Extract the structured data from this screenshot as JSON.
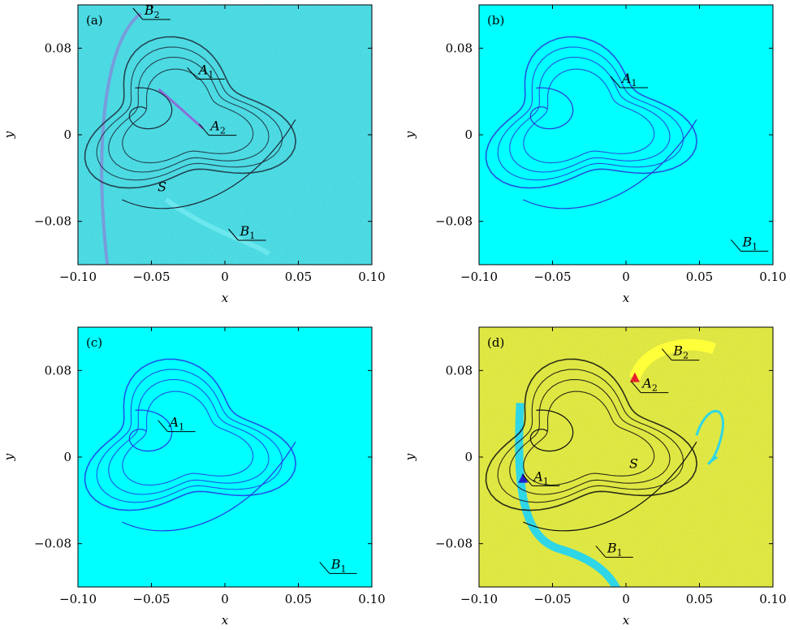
{
  "chart_data": [
    {
      "panel": "(a)",
      "type": "scatter",
      "title": "",
      "xlabel": "x",
      "ylabel": "y",
      "xlim": [
        -0.1,
        0.1
      ],
      "ylim": [
        -0.12,
        0.12
      ],
      "xticks": [
        -0.1,
        -0.05,
        0,
        0.05,
        0.1
      ],
      "xtick_labels": [
        "−0.10",
        "−0.05",
        "0",
        "0.05",
        "0.10"
      ],
      "yticks": [
        -0.08,
        0,
        0.08
      ],
      "ytick_labels": [
        "−0.08",
        "0",
        "0.08"
      ],
      "background": "#35e0ea",
      "annotations": [
        {
          "label": "B",
          "sub": "2",
          "x": -0.057,
          "y": 0.111
        },
        {
          "label": "A",
          "sub": "1",
          "x": -0.02,
          "y": 0.056
        },
        {
          "label": "A",
          "sub": "2",
          "x": -0.012,
          "y": 0.004
        },
        {
          "label": "S",
          "x": -0.048,
          "y": -0.052
        },
        {
          "label": "B",
          "sub": "1",
          "x": 0.008,
          "y": -0.093
        }
      ]
    },
    {
      "panel": "(b)",
      "type": "scatter",
      "title": "",
      "xlabel": "x",
      "ylabel": "y",
      "xlim": [
        -0.1,
        0.1
      ],
      "ylim": [
        -0.12,
        0.12
      ],
      "xticks": [
        -0.1,
        -0.05,
        0,
        0.05,
        0.1
      ],
      "xtick_labels": [
        "−0.10",
        "−0.05",
        "0",
        "0.05",
        "0.10"
      ],
      "yticks": [
        -0.08,
        0,
        0.08
      ],
      "ytick_labels": [
        "−0.08",
        "0",
        "0.08"
      ],
      "background": "#00ffff",
      "annotations": [
        {
          "label": "A",
          "sub": "1",
          "x": -0.005,
          "y": 0.048
        },
        {
          "label": "B",
          "sub": "1",
          "x": 0.077,
          "y": -0.103
        }
      ]
    },
    {
      "panel": "(c)",
      "type": "scatter",
      "title": "",
      "xlabel": "x",
      "ylabel": "y",
      "xlim": [
        -0.1,
        0.1
      ],
      "ylim": [
        -0.12,
        0.12
      ],
      "xticks": [
        -0.1,
        -0.05,
        0,
        0.05,
        0.1
      ],
      "xtick_labels": [
        "−0.10",
        "−0.05",
        "0",
        "0.05",
        "0.10"
      ],
      "yticks": [
        -0.08,
        0,
        0.08
      ],
      "ytick_labels": [
        "−0.08",
        "0",
        "0.08"
      ],
      "background": "#00ffff",
      "annotations": [
        {
          "label": "A",
          "sub": "1",
          "x": -0.04,
          "y": 0.028
        },
        {
          "label": "B",
          "sub": "1",
          "x": 0.07,
          "y": -0.103
        }
      ]
    },
    {
      "panel": "(d)",
      "type": "scatter",
      "title": "",
      "xlabel": "x",
      "ylabel": "y",
      "xlim": [
        -0.1,
        0.1
      ],
      "ylim": [
        -0.12,
        0.12
      ],
      "xticks": [
        -0.1,
        -0.05,
        0,
        0.05,
        0.1
      ],
      "xtick_labels": [
        "−0.10",
        "−0.05",
        "0",
        "0.05",
        "0.10"
      ],
      "yticks": [
        -0.08,
        0,
        0.08
      ],
      "ytick_labels": [
        "−0.08",
        "0",
        "0.08"
      ],
      "background": "#e6f02a",
      "annotations": [
        {
          "label": "B",
          "sub": "2",
          "x": 0.03,
          "y": 0.094
        },
        {
          "label": "A",
          "sub": "2",
          "x": 0.009,
          "y": 0.064
        },
        {
          "label": "A",
          "sub": "1",
          "x": -0.065,
          "y": -0.022
        },
        {
          "label": "S",
          "x": 0.0,
          "y": -0.01
        },
        {
          "label": "B",
          "sub": "1",
          "x": -0.015,
          "y": -0.088
        }
      ],
      "markers": [
        {
          "name": "A2-triangle",
          "x": 0.006,
          "y": 0.073,
          "color": "#e8202a"
        },
        {
          "name": "A1-triangle",
          "x": -0.07,
          "y": -0.02,
          "color": "#2222c8"
        }
      ]
    }
  ]
}
